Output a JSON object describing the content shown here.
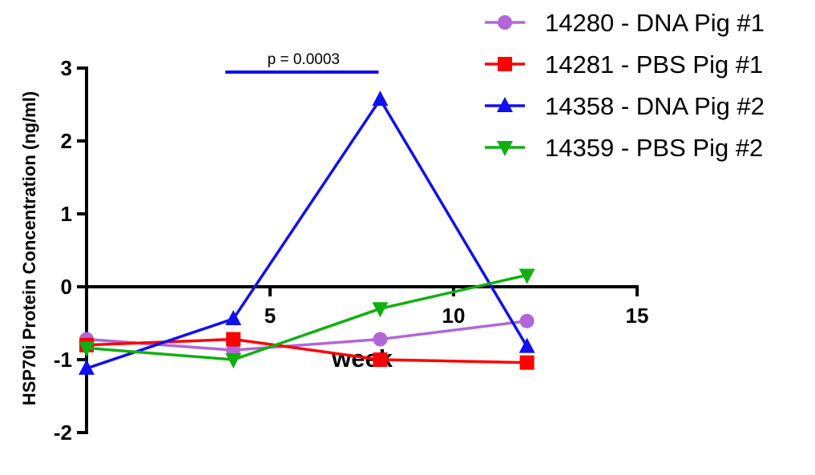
{
  "chart_data": {
    "type": "line",
    "xlabel": "week",
    "ylabel": "HSP70i Protein Concentration (ng/ml)",
    "xlim": [
      0,
      15
    ],
    "ylim": [
      -2,
      3
    ],
    "xticks": [
      "5",
      "10",
      "15"
    ],
    "yticks": [
      "3",
      "2",
      "1",
      "0",
      "-1",
      "-2"
    ],
    "grid": false,
    "legend_position": "top-right",
    "series": [
      {
        "name": "14280 - DNA Pig #1",
        "color": "#b266d8",
        "marker": "circle",
        "x": [
          0,
          4,
          8,
          12
        ],
        "y": [
          -0.72,
          -0.87,
          -0.72,
          -0.47
        ]
      },
      {
        "name": "14281 - PBS Pig #1",
        "color": "#ff0000",
        "marker": "square",
        "x": [
          0,
          4,
          8,
          12
        ],
        "y": [
          -0.8,
          -0.72,
          -1.0,
          -1.04
        ]
      },
      {
        "name": "14358 - DNA Pig #2",
        "color": "#1010f0",
        "marker": "triangle-up",
        "x": [
          0,
          4,
          8,
          12
        ],
        "y": [
          -1.12,
          -0.44,
          2.57,
          -0.82
        ]
      },
      {
        "name": "14359 - PBS Pig #2",
        "color": "#10b010",
        "marker": "triangle-down",
        "x": [
          0,
          4,
          8,
          12
        ],
        "y": [
          -0.84,
          -1.0,
          -0.3,
          0.16
        ]
      }
    ],
    "annotations": [
      {
        "type": "significance-bar",
        "text": "p = 0.0003",
        "x_start": 4,
        "x_end": 8,
        "color": "#1010f0"
      }
    ]
  }
}
